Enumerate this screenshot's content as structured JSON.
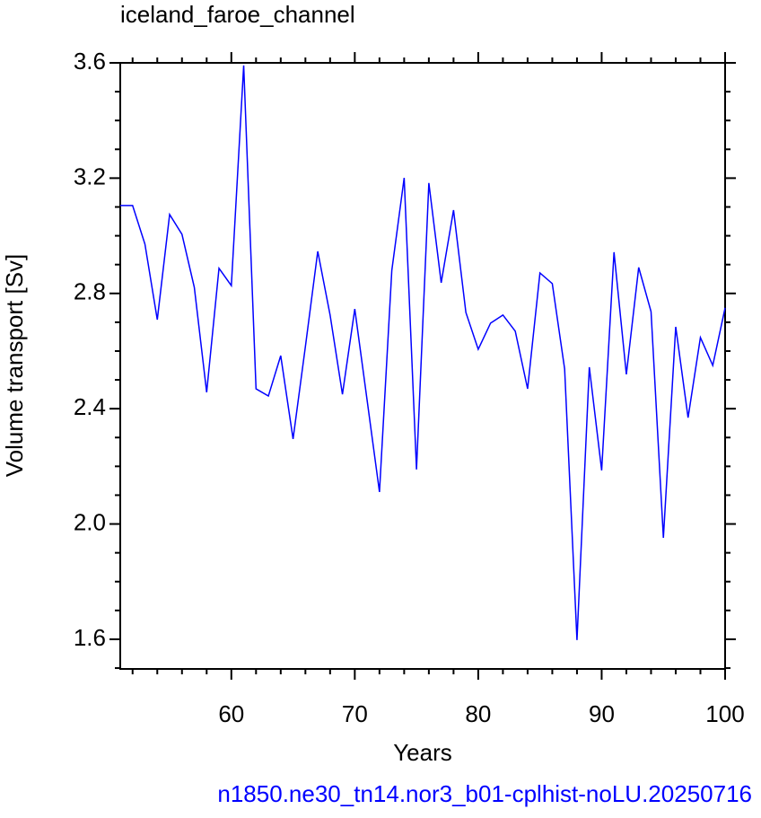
{
  "chart_data": {
    "type": "line",
    "title": "iceland_faroe_channel",
    "subtitle": "n1850.ne30_tn14.nor3_b01-cplhist-noLU.20250716",
    "x_label": "Years",
    "y_label": "Volume transport [Sv]",
    "x": [
      51,
      52,
      53,
      54,
      55,
      56,
      57,
      58,
      59,
      60,
      61,
      62,
      63,
      64,
      65,
      66,
      67,
      68,
      69,
      70,
      71,
      72,
      73,
      74,
      75,
      76,
      77,
      78,
      79,
      80,
      81,
      82,
      83,
      84,
      85,
      86,
      87,
      88,
      89,
      90,
      91,
      92,
      93,
      94,
      95,
      96,
      97,
      98,
      99,
      100
    ],
    "series": [
      {
        "color": "#0000ff",
        "values": [
          3.105,
          3.105,
          2.971,
          2.709,
          3.074,
          3.005,
          2.821,
          2.457,
          2.887,
          2.827,
          3.591,
          2.469,
          2.444,
          2.584,
          2.295,
          2.616,
          2.946,
          2.725,
          2.45,
          2.746,
          2.429,
          2.111,
          2.88,
          3.201,
          2.189,
          3.183,
          2.837,
          3.089,
          2.734,
          2.606,
          2.697,
          2.725,
          2.669,
          2.469,
          2.871,
          2.834,
          2.538,
          1.597,
          2.544,
          2.186,
          2.943,
          2.519,
          2.89,
          2.737,
          1.952,
          2.684,
          2.369,
          2.647,
          2.55,
          2.75
        ]
      }
    ],
    "xlim": [
      51,
      100
    ],
    "ylim": [
      1.497,
      3.6
    ],
    "xticks": [
      60,
      70,
      80,
      90,
      100
    ],
    "yticks": [
      1.6,
      {
        "value": 2.0,
        "label": "2.0"
      },
      2.4,
      2.8,
      3.2,
      3.6
    ],
    "xminorticks": [
      52,
      54,
      56,
      58,
      62,
      64,
      66,
      68,
      72,
      74,
      76,
      78,
      82,
      84,
      86,
      88,
      92,
      94,
      96,
      98
    ],
    "yminorticks": [
      1.5,
      1.7,
      1.8,
      1.9,
      2.1,
      2.2,
      2.3,
      2.5,
      2.6,
      2.7,
      2.9,
      3.0,
      3.1,
      3.3,
      3.4,
      3.5
    ]
  }
}
